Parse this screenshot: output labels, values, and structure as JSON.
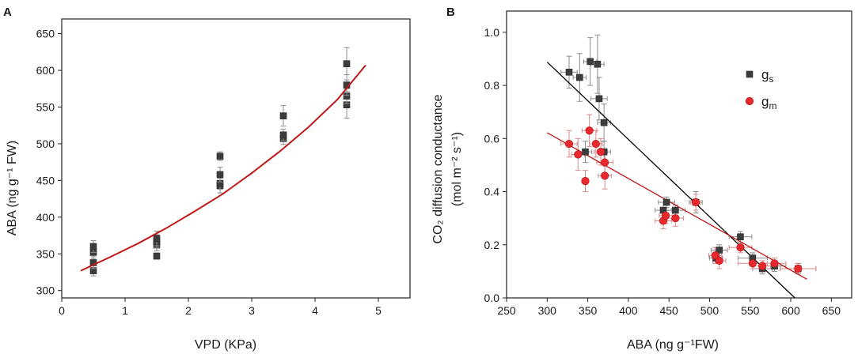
{
  "panel_labels": [
    "A",
    "B"
  ],
  "chart_data": [
    {
      "type": "scatter",
      "panel": "A",
      "xlabel": "VPD (KPa)",
      "ylabel": "ABA (ng g⁻¹ FW)",
      "xlim": [
        0,
        5.5
      ],
      "ylim": [
        290,
        670
      ],
      "xticks": [
        0,
        1,
        2,
        3,
        4,
        5
      ],
      "yticks": [
        300,
        350,
        400,
        450,
        500,
        550,
        600,
        650
      ],
      "marker_color": "#3c3c3c",
      "fit_color": "#c01818",
      "points": [
        {
          "x": 0.5,
          "y": 327,
          "err": 7
        },
        {
          "x": 0.5,
          "y": 338,
          "err": 8
        },
        {
          "x": 0.5,
          "y": 352,
          "err": 9
        },
        {
          "x": 0.5,
          "y": 360,
          "err": 8
        },
        {
          "x": 1.5,
          "y": 347,
          "err": 4
        },
        {
          "x": 1.5,
          "y": 362,
          "err": 8
        },
        {
          "x": 1.5,
          "y": 367,
          "err": 9
        },
        {
          "x": 1.5,
          "y": 371,
          "err": 10
        },
        {
          "x": 2.5,
          "y": 443,
          "err": 10
        },
        {
          "x": 2.5,
          "y": 446,
          "err": 8
        },
        {
          "x": 2.5,
          "y": 458,
          "err": 10
        },
        {
          "x": 2.5,
          "y": 483,
          "err": 6
        },
        {
          "x": 3.5,
          "y": 507,
          "err": 8
        },
        {
          "x": 3.5,
          "y": 512,
          "err": 8
        },
        {
          "x": 3.5,
          "y": 538,
          "err": 14
        },
        {
          "x": 4.5,
          "y": 553,
          "err": 18
        },
        {
          "x": 4.5,
          "y": 565,
          "err": 10
        },
        {
          "x": 4.5,
          "y": 580,
          "err": 14
        },
        {
          "x": 4.5,
          "y": 609,
          "err": 22
        }
      ],
      "fit": {
        "x": [
          0.3,
          0.75,
          1.2,
          1.65,
          2.1,
          2.55,
          3.0,
          3.45,
          3.9,
          4.35,
          4.8
        ],
        "y": [
          327,
          345,
          364,
          385,
          408,
          432,
          460,
          490,
          523,
          560,
          607
        ]
      }
    },
    {
      "type": "scatter",
      "panel": "B",
      "xlabel": "ABA (ng g⁻¹FW)",
      "ylabel_line1": "CO₂ diffusion conductance",
      "ylabel_line2": "(mol m⁻² s⁻¹)",
      "xlim": [
        250,
        675
      ],
      "ylim": [
        0,
        1.08
      ],
      "xticks": [
        250,
        300,
        350,
        400,
        450,
        500,
        550,
        600,
        650
      ],
      "yticks": [
        0.0,
        0.2,
        0.4,
        0.6,
        0.8,
        1.0
      ],
      "ytick_labels": [
        "0.0",
        "0.2",
        "0.4",
        "0.6",
        "0.8",
        "1.0"
      ],
      "legend": [
        {
          "label": "g",
          "sub": "s",
          "marker": "square",
          "color": "#3c3c3c"
        },
        {
          "label": "g",
          "sub": "m",
          "marker": "circle",
          "color": "#e8282d"
        }
      ],
      "series": [
        {
          "name": "gs",
          "marker": "square",
          "color": "#3c3c3c",
          "line_color": "#000000",
          "fit_line": {
            "x": [
              300,
              605
            ],
            "y": [
              0.888,
              0.0
            ]
          },
          "points": [
            {
              "x": 327,
              "y": 0.85,
              "xerr": 10,
              "yerr": 0.06
            },
            {
              "x": 340,
              "y": 0.83,
              "xerr": 8,
              "yerr": 0.09
            },
            {
              "x": 353,
              "y": 0.89,
              "xerr": 8,
              "yerr": 0.09
            },
            {
              "x": 362,
              "y": 0.88,
              "xerr": 8,
              "yerr": 0.11
            },
            {
              "x": 364,
              "y": 0.75,
              "xerr": 10,
              "yerr": 0.08
            },
            {
              "x": 370,
              "y": 0.66,
              "xerr": 8,
              "yerr": 0.07
            },
            {
              "x": 347,
              "y": 0.55,
              "xerr": 8,
              "yerr": 0.04
            },
            {
              "x": 370,
              "y": 0.55,
              "xerr": 8,
              "yerr": 0.04
            },
            {
              "x": 447,
              "y": 0.36,
              "xerr": 10,
              "yerr": 0.02
            },
            {
              "x": 443,
              "y": 0.33,
              "xerr": 10,
              "yerr": 0.03
            },
            {
              "x": 458,
              "y": 0.33,
              "xerr": 12,
              "yerr": 0.02
            },
            {
              "x": 483,
              "y": 0.36,
              "xerr": 8,
              "yerr": 0.04
            },
            {
              "x": 538,
              "y": 0.23,
              "xerr": 14,
              "yerr": 0.02
            },
            {
              "x": 512,
              "y": 0.18,
              "xerr": 10,
              "yerr": 0.02
            },
            {
              "x": 508,
              "y": 0.15,
              "xerr": 8,
              "yerr": 0.02
            },
            {
              "x": 553,
              "y": 0.15,
              "xerr": 18,
              "yerr": 0.02
            },
            {
              "x": 565,
              "y": 0.11,
              "xerr": 12,
              "yerr": 0.02
            },
            {
              "x": 580,
              "y": 0.12,
              "xerr": 14,
              "yerr": 0.02
            },
            {
              "x": 609,
              "y": 0.11,
              "xerr": 22,
              "yerr": 0.02
            }
          ]
        },
        {
          "name": "gm",
          "marker": "circle",
          "color": "#e8282d",
          "line_color": "#c01818",
          "fit_line": {
            "x": [
              300,
              620
            ],
            "y": [
              0.622,
              0.07
            ]
          },
          "points": [
            {
              "x": 327,
              "y": 0.58,
              "xerr": 10,
              "yerr": 0.05
            },
            {
              "x": 338,
              "y": 0.54,
              "xerr": 8,
              "yerr": 0.06
            },
            {
              "x": 352,
              "y": 0.63,
              "xerr": 9,
              "yerr": 0.06
            },
            {
              "x": 360,
              "y": 0.58,
              "xerr": 8,
              "yerr": 0.05
            },
            {
              "x": 366,
              "y": 0.55,
              "xerr": 8,
              "yerr": 0.05
            },
            {
              "x": 371,
              "y": 0.51,
              "xerr": 10,
              "yerr": 0.05
            },
            {
              "x": 371,
              "y": 0.46,
              "xerr": 8,
              "yerr": 0.05
            },
            {
              "x": 347,
              "y": 0.44,
              "xerr": 4,
              "yerr": 0.04
            },
            {
              "x": 443,
              "y": 0.29,
              "xerr": 10,
              "yerr": 0.03
            },
            {
              "x": 446,
              "y": 0.31,
              "xerr": 8,
              "yerr": 0.03
            },
            {
              "x": 458,
              "y": 0.3,
              "xerr": 10,
              "yerr": 0.03
            },
            {
              "x": 483,
              "y": 0.36,
              "xerr": 6,
              "yerr": 0.03
            },
            {
              "x": 507,
              "y": 0.16,
              "xerr": 8,
              "yerr": 0.03
            },
            {
              "x": 512,
              "y": 0.14,
              "xerr": 8,
              "yerr": 0.03
            },
            {
              "x": 538,
              "y": 0.19,
              "xerr": 14,
              "yerr": 0.02
            },
            {
              "x": 553,
              "y": 0.13,
              "xerr": 18,
              "yerr": 0.02
            },
            {
              "x": 565,
              "y": 0.12,
              "xerr": 10,
              "yerr": 0.02
            },
            {
              "x": 580,
              "y": 0.13,
              "xerr": 14,
              "yerr": 0.02
            },
            {
              "x": 609,
              "y": 0.11,
              "xerr": 22,
              "yerr": 0.02
            }
          ]
        }
      ]
    }
  ]
}
